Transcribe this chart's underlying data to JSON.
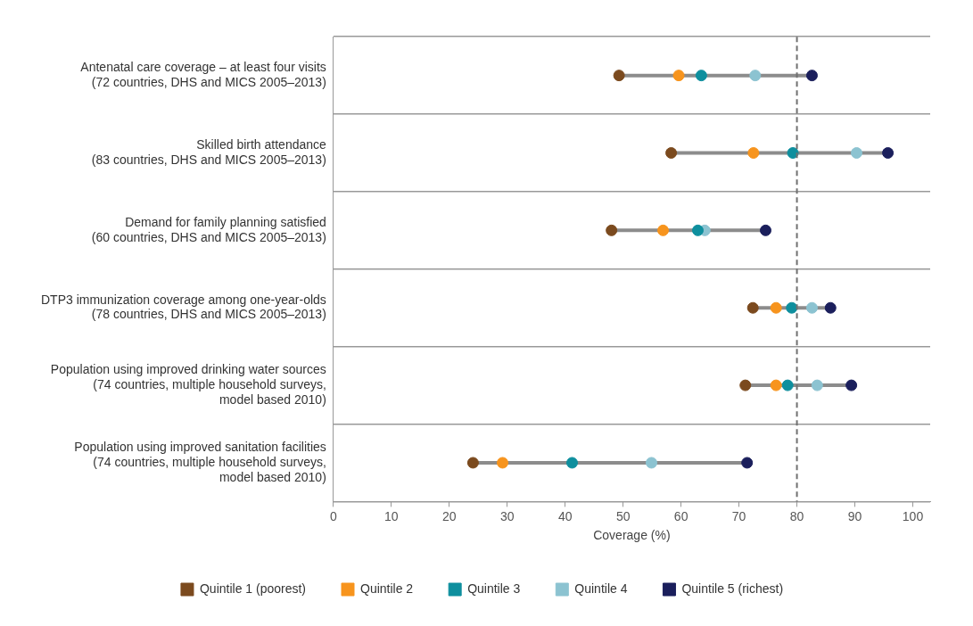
{
  "chart_data": {
    "type": "scatter",
    "orientation": "horizontal",
    "categories": [
      "Antenatal care coverage – at least four visits\n(72 countries, DHS and MICS 2005–2013)",
      "Skilled birth attendance\n(83 countries, DHS and MICS 2005–2013)",
      "Demand for family planning satisfied\n(60 countries, DHS and MICS 2005–2013)",
      "DTP3 immunization coverage among one-year-olds\n(78 countries, DHS and MICS 2005–2013)",
      "Population using improved drinking water sources\n(74 countries, multiple household surveys,\nmodel based 2010)",
      "Population using improved sanitation facilities\n(74 countries, multiple household surveys,\nmodel based 2010)"
    ],
    "series": [
      {
        "name": "Quintile 1 (poorest)",
        "color": "#7b4a1e",
        "values": [
          49.3,
          58.3,
          48.0,
          72.4,
          71.1,
          24.1
        ]
      },
      {
        "name": "Quintile 2",
        "color": "#f7941d",
        "values": [
          59.6,
          72.5,
          56.9,
          76.4,
          76.4,
          29.2
        ]
      },
      {
        "name": "Quintile 3",
        "color": "#0e8f9e",
        "values": [
          63.5,
          79.3,
          62.9,
          79.1,
          78.4,
          41.2
        ]
      },
      {
        "name": "Quintile 4",
        "color": "#8cc3d1",
        "values": [
          72.8,
          90.3,
          64.1,
          82.6,
          83.5,
          54.9
        ]
      },
      {
        "name": "Quintile 5 (richest)",
        "color": "#1b1f5c",
        "values": [
          82.6,
          95.7,
          74.6,
          85.8,
          89.4,
          71.4
        ]
      }
    ],
    "xlabel": "Coverage (%)",
    "xlim": [
      0,
      103
    ],
    "xticks": [
      0,
      10,
      20,
      30,
      40,
      50,
      60,
      70,
      80,
      90,
      100
    ],
    "ref_lines": [
      {
        "axis": "x",
        "value": 80,
        "color": "#707070",
        "line_style": "dashed"
      }
    ],
    "grid": "y",
    "legend": "bottom",
    "marker": "circle"
  }
}
